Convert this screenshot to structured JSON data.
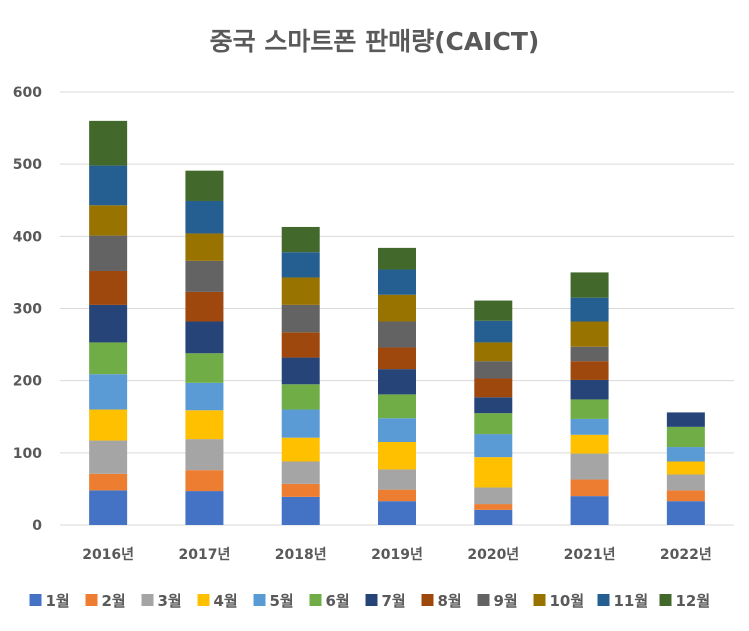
{
  "chart_data": {
    "type": "bar",
    "stacked": true,
    "title": "중국 스마트폰 판매량(CAICT)",
    "xlabel": "",
    "ylabel": "",
    "ylim": [
      0,
      600
    ],
    "yticks": [
      "0",
      "100",
      "200",
      "300",
      "400",
      "500",
      "600"
    ],
    "grid": true,
    "legend_position": "bottom",
    "categories": [
      "2016년",
      "2017년",
      "2018년",
      "2019년",
      "2020년",
      "2021년",
      "2022년"
    ],
    "series": [
      {
        "name": "1월",
        "color": "#4472C4",
        "values": [
          48,
          47,
          39,
          33,
          21,
          40,
          33
        ]
      },
      {
        "name": "2월",
        "color": "#ED7D31",
        "values": [
          23,
          29,
          18,
          16,
          8,
          23,
          15
        ]
      },
      {
        "name": "3월",
        "color": "#A5A5A5",
        "values": [
          46,
          43,
          31,
          28,
          23,
          36,
          22
        ]
      },
      {
        "name": "4월",
        "color": "#FFC000",
        "values": [
          43,
          40,
          33,
          38,
          42,
          26,
          18
        ]
      },
      {
        "name": "5월",
        "color": "#5B9BD5",
        "values": [
          49,
          38,
          39,
          33,
          32,
          22,
          20
        ]
      },
      {
        "name": "6월",
        "color": "#70AD47",
        "values": [
          44,
          41,
          35,
          33,
          29,
          27,
          28
        ]
      },
      {
        "name": "7월",
        "color": "#264478",
        "values": [
          52,
          44,
          37,
          35,
          22,
          27,
          20
        ]
      },
      {
        "name": "8월",
        "color": "#9E480E",
        "values": [
          47,
          41,
          35,
          30,
          26,
          26,
          0
        ]
      },
      {
        "name": "9월",
        "color": "#636363",
        "values": [
          49,
          43,
          38,
          36,
          24,
          20,
          0
        ]
      },
      {
        "name": "10월",
        "color": "#997300",
        "values": [
          42,
          38,
          38,
          37,
          26,
          35,
          0
        ]
      },
      {
        "name": "11월",
        "color": "#255E91",
        "values": [
          55,
          45,
          35,
          35,
          30,
          33,
          0
        ]
      },
      {
        "name": "12월",
        "color": "#43682B",
        "values": [
          62,
          42,
          35,
          30,
          28,
          35,
          0
        ]
      }
    ]
  }
}
